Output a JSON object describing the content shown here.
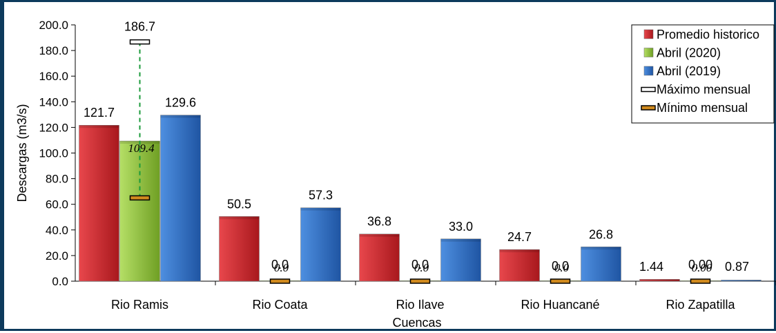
{
  "chart_data": {
    "type": "bar",
    "xlabel": "Cuencas",
    "ylabel": "Descargas (m3/s)",
    "ylim": [
      0,
      200
    ],
    "y_ticks": [
      "0.0",
      "20.0",
      "40.0",
      "60.0",
      "80.0",
      "100.0",
      "120.0",
      "140.0",
      "160.0",
      "180.0",
      "200.0"
    ],
    "grid": false,
    "legend_position": "top-right",
    "categories": [
      "Rio Ramis",
      "Rio Coata",
      "Rio Ilave",
      "Rio Huancané",
      "Rio Zapatilla"
    ],
    "series": [
      {
        "name": "Promedio historico",
        "values": [
          121.7,
          50.5,
          36.8,
          24.7,
          1.44
        ],
        "labels": [
          "121.7",
          "50.5",
          "36.8",
          "24.7",
          "1.44"
        ],
        "color": "#c0282d"
      },
      {
        "name": "Abril (2020)",
        "values": [
          109.4,
          0.0,
          0.0,
          0.0,
          0.0
        ],
        "labels": [
          "109.4",
          "0.0",
          "0.0",
          "0.0",
          "0.00"
        ],
        "color": "#8fc23a"
      },
      {
        "name": "Abril (2019)",
        "values": [
          129.6,
          57.3,
          33.0,
          26.8,
          0.87
        ],
        "labels": [
          "129.6",
          "57.3",
          "33.0",
          "26.8",
          "0.87"
        ],
        "color": "#2f6fc4"
      }
    ],
    "extremes": [
      {
        "name": "Máximo mensual",
        "values": [
          186.7,
          0.0,
          0.0,
          0.0,
          0.0
        ],
        "labels": [
          "186.7",
          "",
          "",
          "",
          ""
        ]
      },
      {
        "name": "Mínimo mensual",
        "values": [
          65.0,
          0.0,
          0.0,
          0.0,
          0.0
        ],
        "labels": [
          "",
          "0.0",
          "0.0",
          "0.0",
          "0.00"
        ]
      }
    ],
    "colors": {
      "max_marker": "#ffffff",
      "min_marker": "#d08a1e",
      "whisker": "#1a9a3a"
    }
  }
}
